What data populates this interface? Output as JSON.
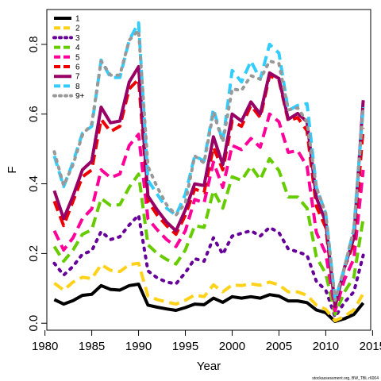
{
  "chart_data": {
    "type": "line",
    "xlabel": "Year",
    "ylabel": "F",
    "xlim": [
      1980.2,
      2014.8
    ],
    "ylim": [
      -0.02,
      0.9
    ],
    "x_ticks": [
      1980,
      1985,
      1990,
      1995,
      2000,
      2005,
      2010,
      2015
    ],
    "x_tick_labels": [
      "1980",
      "1985",
      "1990",
      "1995",
      "2000",
      "2005",
      "2010",
      "2015"
    ],
    "y_ticks": [
      0.0,
      0.2,
      0.4,
      0.6,
      0.8
    ],
    "y_tick_labels": [
      "0.0",
      "0.2",
      "0.4",
      "0.6",
      "0.8"
    ],
    "grid": false,
    "legend_position": "top-left",
    "credit": "stockassessment.org, BW_TBL r6004",
    "x": [
      1981,
      1982,
      1983,
      1984,
      1985,
      1986,
      1987,
      1988,
      1989,
      1990,
      1991,
      1992,
      1993,
      1994,
      1995,
      1996,
      1997,
      1998,
      1999,
      2000,
      2001,
      2002,
      2003,
      2004,
      2005,
      2006,
      2007,
      2008,
      2009,
      2010,
      2011,
      2012,
      2013,
      2014
    ],
    "series": [
      {
        "name": "1",
        "color": "#000000",
        "dash": "solid",
        "values": [
          0.068,
          0.055,
          0.065,
          0.08,
          0.083,
          0.108,
          0.097,
          0.095,
          0.108,
          0.112,
          0.052,
          0.046,
          0.041,
          0.037,
          0.045,
          0.055,
          0.053,
          0.072,
          0.06,
          0.076,
          0.072,
          0.076,
          0.072,
          0.082,
          0.078,
          0.064,
          0.064,
          0.059,
          0.038,
          0.03,
          0.005,
          0.013,
          0.025,
          0.058
        ]
      },
      {
        "name": "2",
        "color": "#ffd21a",
        "dash": "dash",
        "values": [
          0.115,
          0.095,
          0.118,
          0.132,
          0.128,
          0.168,
          0.152,
          0.148,
          0.168,
          0.172,
          0.078,
          0.068,
          0.061,
          0.055,
          0.066,
          0.081,
          0.076,
          0.11,
          0.09,
          0.11,
          0.108,
          0.113,
          0.109,
          0.118,
          0.11,
          0.09,
          0.09,
          0.08,
          0.052,
          0.04,
          0.007,
          0.02,
          0.038,
          0.085
        ]
      },
      {
        "name": "3",
        "color": "#660099",
        "dash": "dot",
        "values": [
          0.172,
          0.138,
          0.163,
          0.198,
          0.208,
          0.263,
          0.24,
          0.248,
          0.282,
          0.31,
          0.15,
          0.13,
          0.118,
          0.113,
          0.145,
          0.185,
          0.178,
          0.245,
          0.198,
          0.25,
          0.258,
          0.265,
          0.25,
          0.275,
          0.26,
          0.213,
          0.205,
          0.195,
          0.12,
          0.095,
          0.018,
          0.06,
          0.09,
          0.195
        ]
      },
      {
        "name": "4",
        "color": "#66cc00",
        "dash": "dash",
        "values": [
          0.22,
          0.178,
          0.21,
          0.255,
          0.268,
          0.358,
          0.338,
          0.34,
          0.39,
          0.428,
          0.225,
          0.2,
          0.183,
          0.17,
          0.21,
          0.28,
          0.275,
          0.38,
          0.33,
          0.42,
          0.41,
          0.45,
          0.412,
          0.472,
          0.438,
          0.362,
          0.362,
          0.33,
          0.19,
          0.142,
          0.026,
          0.09,
          0.132,
          0.3
        ]
      },
      {
        "name": "5",
        "color": "#ff0099",
        "dash": "dash",
        "values": [
          0.265,
          0.21,
          0.245,
          0.3,
          0.328,
          0.44,
          0.418,
          0.428,
          0.51,
          0.542,
          0.3,
          0.268,
          0.24,
          0.22,
          0.265,
          0.355,
          0.345,
          0.462,
          0.39,
          0.51,
          0.498,
          0.53,
          0.505,
          0.6,
          0.578,
          0.49,
          0.495,
          0.45,
          0.26,
          0.2,
          0.036,
          0.125,
          0.185,
          0.44
        ]
      },
      {
        "name": "6",
        "color": "#ee0000",
        "dash": "dash",
        "values": [
          0.35,
          0.28,
          0.35,
          0.42,
          0.44,
          0.585,
          0.55,
          0.565,
          0.672,
          0.7,
          0.35,
          0.31,
          0.28,
          0.255,
          0.31,
          0.385,
          0.375,
          0.505,
          0.44,
          0.58,
          0.565,
          0.625,
          0.59,
          0.71,
          0.698,
          0.58,
          0.59,
          0.552,
          0.335,
          0.275,
          0.048,
          0.16,
          0.23,
          0.56
        ]
      },
      {
        "name": "7",
        "color": "#990066",
        "dash": "solid",
        "values": [
          0.38,
          0.3,
          0.365,
          0.44,
          0.465,
          0.62,
          0.575,
          0.58,
          0.692,
          0.736,
          0.365,
          0.325,
          0.29,
          0.265,
          0.325,
          0.4,
          0.395,
          0.535,
          0.455,
          0.6,
          0.58,
          0.635,
          0.6,
          0.718,
          0.702,
          0.585,
          0.602,
          0.578,
          0.36,
          0.29,
          0.048,
          0.16,
          0.245,
          0.64
        ]
      },
      {
        "name": "8",
        "color": "#33ccff",
        "dash": "dash",
        "values": [
          0.48,
          0.392,
          0.462,
          0.545,
          0.565,
          0.755,
          0.705,
          0.705,
          0.812,
          0.862,
          0.41,
          0.37,
          0.33,
          0.31,
          0.37,
          0.48,
          0.465,
          0.615,
          0.52,
          0.725,
          0.692,
          0.752,
          0.7,
          0.8,
          0.775,
          0.61,
          0.625,
          0.63,
          0.39,
          0.315,
          0.066,
          0.16,
          0.27,
          0.62
        ]
      },
      {
        "name": "9+",
        "color": "#999999",
        "dash": "dot",
        "values": [
          0.492,
          0.395,
          0.455,
          0.54,
          0.572,
          0.752,
          0.712,
          0.712,
          0.812,
          0.84,
          0.45,
          0.39,
          0.34,
          0.31,
          0.345,
          0.48,
          0.46,
          0.605,
          0.52,
          0.672,
          0.668,
          0.71,
          0.7,
          0.752,
          0.745,
          0.612,
          0.618,
          0.578,
          0.39,
          0.315,
          0.066,
          0.16,
          0.27,
          0.62
        ]
      }
    ]
  }
}
